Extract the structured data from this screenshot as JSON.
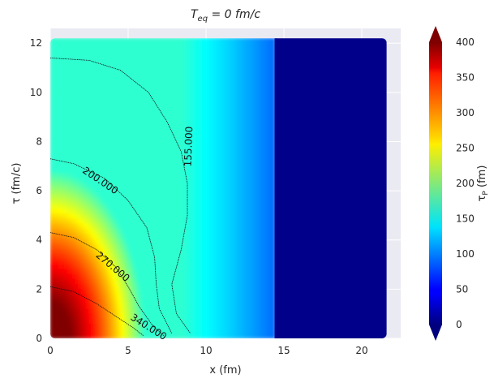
{
  "chart_data": {
    "type": "heatmap",
    "title": "T_eq = 0 fm/c",
    "title_parts": {
      "base": "T",
      "sub": "eq",
      "rest": " = 0 fm/c"
    },
    "xlabel": "x (fm)",
    "ylabel": "τ (fm/c)",
    "colorbar_label": "τ_P (fm)",
    "colorbar_label_parts": {
      "base": "τ",
      "sub": "P",
      "rest": " (fm)"
    },
    "colormap": "jet",
    "xlim": [
      0,
      22.5
    ],
    "ylim": [
      0,
      12.6
    ],
    "clim": [
      0,
      400
    ],
    "x_ticks": [
      "0",
      "5",
      "10",
      "15",
      "20"
    ],
    "y_ticks": [
      "0",
      "2",
      "4",
      "6",
      "8",
      "10",
      "12"
    ],
    "colorbar_ticks": [
      "0",
      "50",
      "100",
      "150",
      "200",
      "250",
      "300",
      "350",
      "400"
    ],
    "grid": true,
    "data_extent": {
      "x": [
        0,
        21.6
      ],
      "y": [
        0,
        12.2
      ]
    },
    "saturation_front": [
      {
        "tau": 0.0,
        "x": 14.4
      },
      {
        "tau": 2.0,
        "x": 14.5
      },
      {
        "tau": 4.0,
        "x": 14.5
      },
      {
        "tau": 6.0,
        "x": 14.4
      },
      {
        "tau": 8.0,
        "x": 14.4
      },
      {
        "tau": 10.0,
        "x": 14.4
      },
      {
        "tau": 12.2,
        "x": 14.5
      }
    ],
    "contours": [
      {
        "level": 155,
        "label": "155.000",
        "points": [
          [
            0,
            11.4
          ],
          [
            2.5,
            11.3
          ],
          [
            4.5,
            10.9
          ],
          [
            6.3,
            10.0
          ],
          [
            7.5,
            8.8
          ],
          [
            8.4,
            7.6
          ],
          [
            8.8,
            6.3
          ],
          [
            8.8,
            5.0
          ],
          [
            8.4,
            3.6
          ],
          [
            7.8,
            2.2
          ],
          [
            8.1,
            1.0
          ],
          [
            9.0,
            0.2
          ]
        ]
      },
      {
        "level": 200,
        "label": "200.000",
        "points": [
          [
            0,
            7.3
          ],
          [
            1.5,
            7.1
          ],
          [
            3.5,
            6.5
          ],
          [
            5.0,
            5.6
          ],
          [
            6.2,
            4.5
          ],
          [
            6.7,
            3.3
          ],
          [
            6.8,
            2.2
          ],
          [
            7.0,
            1.2
          ],
          [
            7.8,
            0.2
          ]
        ]
      },
      {
        "level": 270,
        "label": "270.000",
        "points": [
          [
            0,
            4.3
          ],
          [
            1.5,
            4.1
          ],
          [
            3.0,
            3.6
          ],
          [
            4.2,
            2.9
          ],
          [
            5.0,
            2.1
          ],
          [
            5.7,
            1.3
          ],
          [
            6.6,
            0.5
          ],
          [
            7.3,
            0.1
          ]
        ]
      },
      {
        "level": 340,
        "label": "340.000",
        "points": [
          [
            0,
            2.1
          ],
          [
            1.5,
            1.9
          ],
          [
            3.0,
            1.4
          ],
          [
            4.2,
            0.9
          ],
          [
            5.4,
            0.4
          ],
          [
            6.0,
            0.1
          ]
        ]
      }
    ],
    "contour_labels": [
      {
        "label": "155.000",
        "x": 8.9,
        "y": 7.8,
        "angle_deg": -88
      },
      {
        "label": "200.000",
        "x": 3.2,
        "y": 6.4,
        "angle_deg": 34
      },
      {
        "label": "270.000",
        "x": 4.0,
        "y": 2.9,
        "angle_deg": 40
      },
      {
        "label": "340.000",
        "x": 6.3,
        "y": 0.45,
        "angle_deg": 32
      }
    ]
  }
}
